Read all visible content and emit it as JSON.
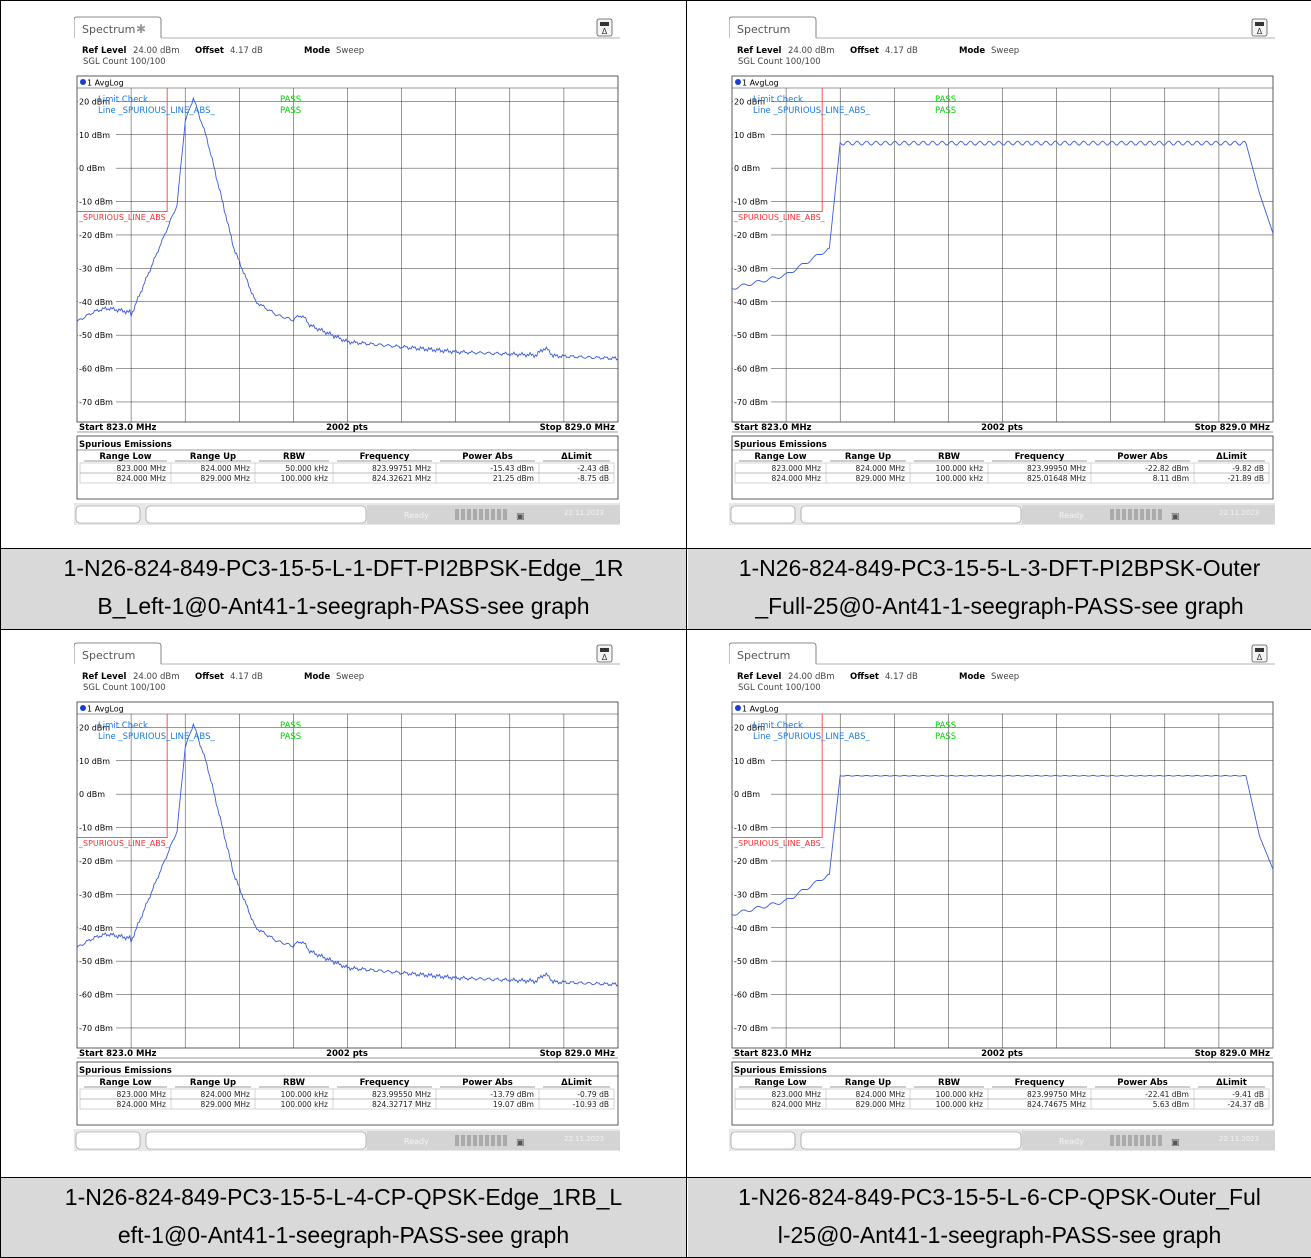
{
  "panels": [
    {
      "tab": "Spectrum",
      "ref_level_label": "Ref Level",
      "ref_level": "24.00 dBm",
      "offset_label": "Offset",
      "offset": "4.17 dB",
      "mode_label": "Mode",
      "mode": "Sweep",
      "sgl_count": "SGL Count 100/100",
      "trace_label": "1 AvgLog",
      "limit_check": "Limit Check",
      "line_label": "Line _SPURIOUS_LINE_ABS_",
      "pass1": "PASS",
      "pass2": "PASS",
      "limit_line_name": "_SPURIOUS_LINE_ABS_",
      "y_labels": [
        "20 dBm",
        "10 dBm",
        "0 dBm",
        "-10 dBm",
        "-20 dBm",
        "-30 dBm",
        "-40 dBm",
        "-50 dBm",
        "-60 dBm",
        "-70 dBm"
      ],
      "start": "Start 823.0 MHz",
      "pts": "2002 pts",
      "stop": "Stop 829.0 MHz",
      "table_title": "Spurious Emissions",
      "headers": [
        "Range Low",
        "Range Up",
        "RBW",
        "Frequency",
        "Power Abs",
        "ΔLimit"
      ],
      "rows": [
        [
          "823.000 MHz",
          "824.000 MHz",
          "50.000 kHz",
          "823.99751 MHz",
          "-15.43 dBm",
          "-2.43 dB"
        ],
        [
          "824.000 MHz",
          "829.000 MHz",
          "100.000 kHz",
          "824.32621 MHz",
          "21.25 dBm",
          "-8.75 dB"
        ]
      ],
      "status": "Ready",
      "date": "22.11.2023",
      "trace_shape": "edge"
    },
    {
      "tab": "Spectrum",
      "ref_level_label": "Ref Level",
      "ref_level": "24.00 dBm",
      "offset_label": "Offset",
      "offset": "4.17 dB",
      "mode_label": "Mode",
      "mode": "Sweep",
      "sgl_count": "SGL Count 100/100",
      "trace_label": "1 AvgLog",
      "limit_check": "Limit Check",
      "line_label": "Line _SPURIOUS_LINE_ABS_",
      "pass1": "PASS",
      "pass2": "PASS",
      "limit_line_name": "_SPURIOUS_LINE_ABS_",
      "y_labels": [
        "20 dBm",
        "10 dBm",
        "0 dBm",
        "-10 dBm",
        "-20 dBm",
        "-30 dBm",
        "-40 dBm",
        "-50 dBm",
        "-60 dBm",
        "-70 dBm"
      ],
      "start": "Start 823.0 MHz",
      "pts": "2002 pts",
      "stop": "Stop 829.0 MHz",
      "table_title": "Spurious Emissions",
      "headers": [
        "Range Low",
        "Range Up",
        "RBW",
        "Frequency",
        "Power Abs",
        "ΔLimit"
      ],
      "rows": [
        [
          "823.000 MHz",
          "824.000 MHz",
          "100.000 kHz",
          "823.99950 MHz",
          "-22.82 dBm",
          "-9.82 dB"
        ],
        [
          "824.000 MHz",
          "829.000 MHz",
          "100.000 kHz",
          "825.01648 MHz",
          "8.11 dBm",
          "-21.89 dB"
        ]
      ],
      "status": "Ready",
      "date": "22.11.2023",
      "trace_shape": "full"
    },
    {
      "tab": "Spectrum",
      "ref_level_label": "Ref Level",
      "ref_level": "24.00 dBm",
      "offset_label": "Offset",
      "offset": "4.17 dB",
      "mode_label": "Mode",
      "mode": "Sweep",
      "sgl_count": "SGL Count 100/100",
      "trace_label": "1 AvgLog",
      "limit_check": "Limit Check",
      "line_label": "Line _SPURIOUS_LINE_ABS_",
      "pass1": "PASS",
      "pass2": "PASS",
      "limit_line_name": "_SPURIOUS_LINE_ABS_",
      "y_labels": [
        "20 dBm",
        "10 dBm",
        "0 dBm",
        "-10 dBm",
        "-20 dBm",
        "-30 dBm",
        "-40 dBm",
        "-50 dBm",
        "-60 dBm",
        "-70 dBm"
      ],
      "start": "Start 823.0 MHz",
      "pts": "2002 pts",
      "stop": "Stop 829.0 MHz",
      "table_title": "Spurious Emissions",
      "headers": [
        "Range Low",
        "Range Up",
        "RBW",
        "Frequency",
        "Power Abs",
        "ΔLimit"
      ],
      "rows": [
        [
          "823.000 MHz",
          "824.000 MHz",
          "100.000 kHz",
          "823.99550 MHz",
          "-13.79 dBm",
          "-0.79 dB"
        ],
        [
          "824.000 MHz",
          "829.000 MHz",
          "100.000 kHz",
          "824.32717 MHz",
          "19.07 dBm",
          "-10.93 dB"
        ]
      ],
      "status": "Ready",
      "date": "22.11.2023",
      "trace_shape": "edge"
    },
    {
      "tab": "Spectrum",
      "ref_level_label": "Ref Level",
      "ref_level": "24.00 dBm",
      "offset_label": "Offset",
      "offset": "4.17 dB",
      "mode_label": "Mode",
      "mode": "Sweep",
      "sgl_count": "SGL Count 100/100",
      "trace_label": "1 AvgLog",
      "limit_check": "Limit Check",
      "line_label": "Line _SPURIOUS_LINE_ABS_",
      "pass1": "PASS",
      "pass2": "PASS",
      "limit_line_name": "_SPURIOUS_LINE_ABS_",
      "y_labels": [
        "20 dBm",
        "10 dBm",
        "0 dBm",
        "-10 dBm",
        "-20 dBm",
        "-30 dBm",
        "-40 dBm",
        "-50 dBm",
        "-60 dBm",
        "-70 dBm"
      ],
      "start": "Start 823.0 MHz",
      "pts": "2002 pts",
      "stop": "Stop 829.0 MHz",
      "table_title": "Spurious Emissions",
      "headers": [
        "Range Low",
        "Range Up",
        "RBW",
        "Frequency",
        "Power Abs",
        "ΔLimit"
      ],
      "rows": [
        [
          "823.000 MHz",
          "824.000 MHz",
          "100.000 kHz",
          "823.99750 MHz",
          "-22.41 dBm",
          "-9.41 dB"
        ],
        [
          "824.000 MHz",
          "829.000 MHz",
          "100.000 kHz",
          "824.74675 MHz",
          "5.63 dBm",
          "-24.37 dB"
        ]
      ],
      "status": "Ready",
      "date": "22.11.2023",
      "trace_shape": "full_flat"
    }
  ],
  "captions": [
    [
      "1-N26-824-849-PC3-15-5-L-1-DFT-PI2BPSK-Edge_1R",
      "B_Left-1@0-Ant41-1-seegraph-PASS-see graph"
    ],
    [
      "1-N26-824-849-PC3-15-5-L-3-DFT-PI2BPSK-Outer",
      "_Full-25@0-Ant41-1-seegraph-PASS-see graph"
    ],
    [
      "1-N26-824-849-PC3-15-5-L-4-CP-QPSK-Edge_1RB_L",
      "eft-1@0-Ant41-1-seegraph-PASS-see graph"
    ],
    [
      "1-N26-824-849-PC3-15-5-L-6-CP-QPSK-Outer_Ful",
      "l-25@0-Ant41-1-seegraph-PASS-see graph"
    ]
  ],
  "colors": {
    "trace": "#3b5bdb",
    "limit": "#ff4040",
    "limit_label": "#ff3030",
    "pass": "#00d000",
    "info_blue": "#1a7bdc",
    "caption_bg": "#d9d9d9"
  }
}
